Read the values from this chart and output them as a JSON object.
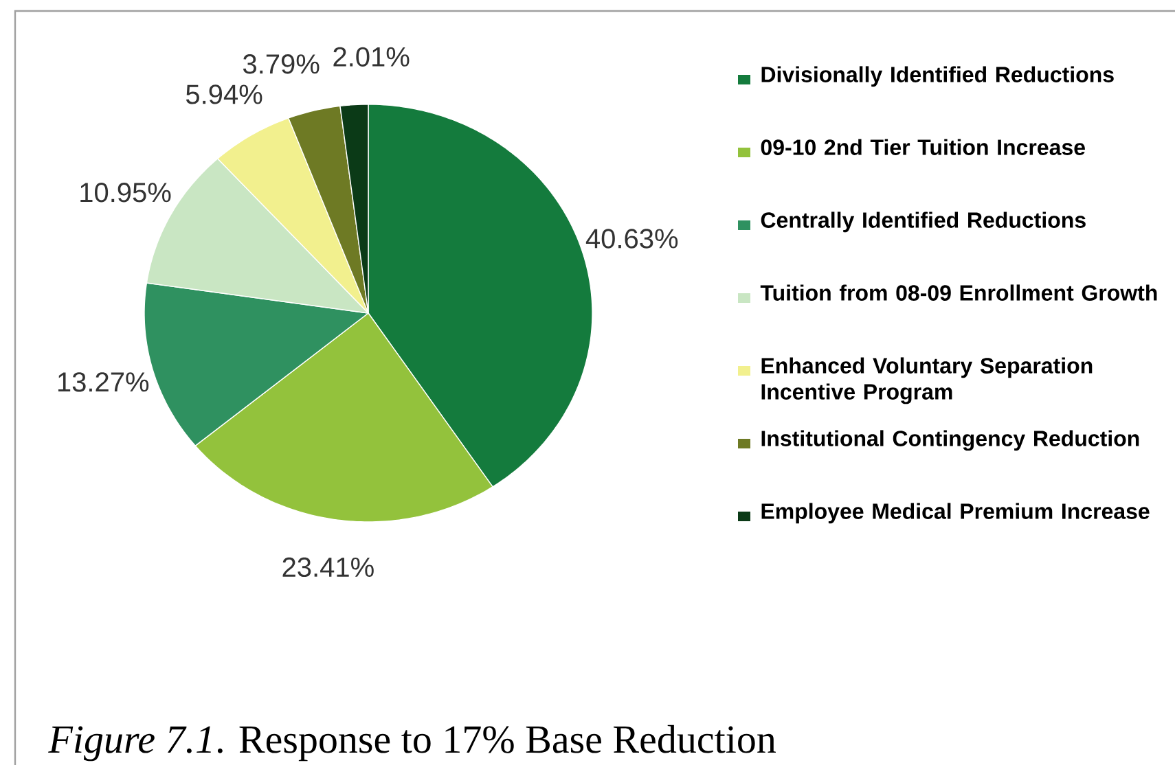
{
  "chart_data": {
    "type": "pie",
    "categories": [
      "Divisionally Identified Reductions",
      "09-10 2nd Tier Tuition Increase",
      "Centrally Identified Reductions",
      "Tuition from 08-09 Enrollment Growth",
      "Enhanced Voluntary Separation Incentive Program",
      "Institutional Contingency Reduction",
      "Employee Medical Premium Increase"
    ],
    "values": [
      40.63,
      23.41,
      13.27,
      10.95,
      5.94,
      3.79,
      2.01
    ],
    "colors": [
      "#147b3d",
      "#93c23c",
      "#2f9160",
      "#c9e6c3",
      "#f2f08e",
      "#6e7a24",
      "#0b3a17"
    ],
    "value_labels": [
      "40.63%",
      "23.41%",
      "13.27%",
      "10.95%",
      "5.94%",
      "3.79%",
      "2.01%"
    ],
    "legend": "right",
    "annotations": [
      "*Figure 7.1*. Response to 17% Base Reduction"
    ]
  }
}
